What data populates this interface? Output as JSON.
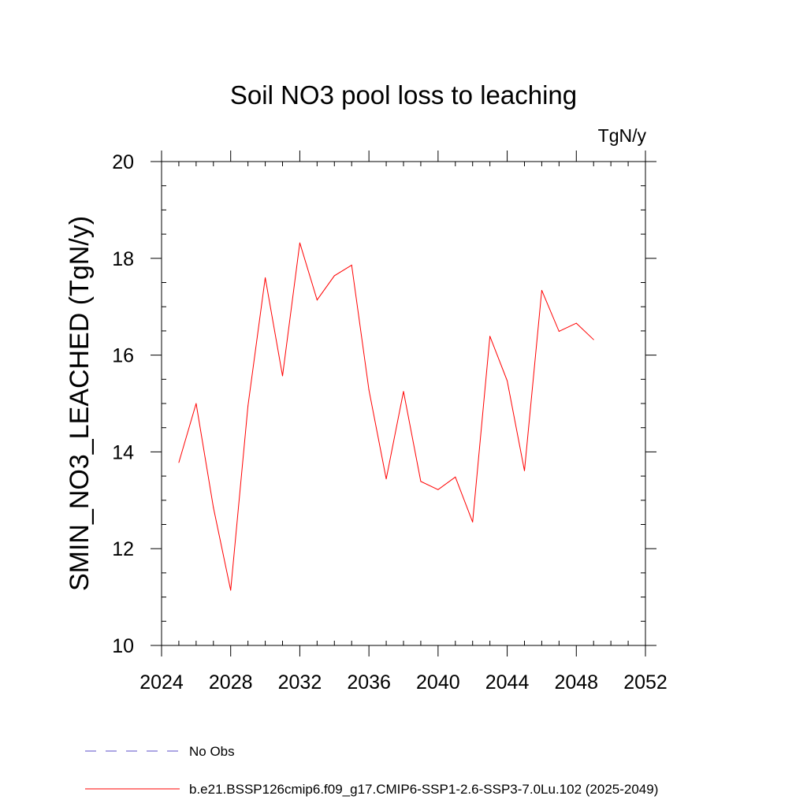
{
  "chart_data": {
    "type": "line",
    "title": "Soil NO3 pool loss to leaching",
    "units_label": "TgN/y",
    "ylabel": "SMIN_NO3_LEACHED  (TgN/y)",
    "xlabel": "",
    "xlim": [
      2024,
      2052
    ],
    "ylim": [
      10,
      20
    ],
    "x_ticks": [
      2024,
      2028,
      2032,
      2036,
      2040,
      2044,
      2048,
      2052
    ],
    "y_ticks": [
      10,
      12,
      14,
      16,
      18,
      20
    ],
    "grid": false,
    "legend_position": "bottom",
    "series": [
      {
        "name": "b.e21.BSSP126cmip6.f09_g17.CMIP6-SSP1-2.6-SSP3-7.0Lu.102 (2025-2049)",
        "color": "#ff0000",
        "style": "solid",
        "x": [
          2025,
          2026,
          2027,
          2028,
          2029,
          2030,
          2031,
          2032,
          2033,
          2034,
          2035,
          2036,
          2037,
          2038,
          2039,
          2040,
          2041,
          2042,
          2043,
          2044,
          2045,
          2046,
          2047,
          2048,
          2049
        ],
        "y": [
          13.78,
          15.0,
          12.85,
          11.14,
          14.95,
          17.6,
          15.57,
          18.32,
          17.14,
          17.64,
          17.86,
          15.28,
          13.44,
          15.25,
          13.39,
          13.22,
          13.48,
          12.55,
          16.39,
          15.47,
          13.61,
          17.34,
          16.49,
          16.66,
          16.32
        ]
      }
    ],
    "legend": [
      {
        "label": "No Obs",
        "color": "#5a4cc8",
        "style": "dashed"
      },
      {
        "label": "b.e21.BSSP126cmip6.f09_g17.CMIP6-SSP1-2.6-SSP3-7.0Lu.102 (2025-2049)",
        "color": "#ff0000",
        "style": "solid"
      }
    ]
  }
}
